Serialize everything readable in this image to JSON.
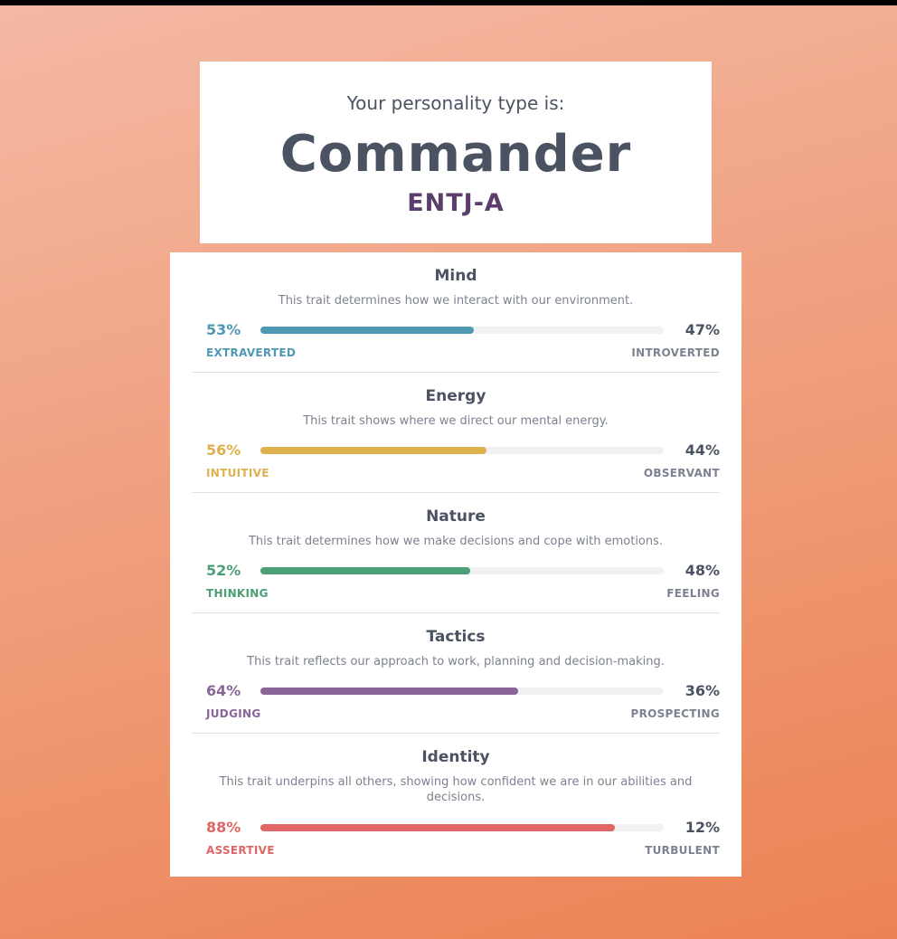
{
  "header": {
    "intro": "Your personality type is:",
    "name": "Commander",
    "code": "ENTJ-A"
  },
  "traits": [
    {
      "title": "Mind",
      "description": "This trait determines how we interact with our environment.",
      "left_pct": "53%",
      "right_pct": "47%",
      "left_label": "EXTRAVERTED",
      "right_label": "INTROVERTED",
      "fill_percent": 53,
      "color": "#4f98b4"
    },
    {
      "title": "Energy",
      "description": "This trait shows where we direct our mental energy.",
      "left_pct": "56%",
      "right_pct": "44%",
      "left_label": "INTUITIVE",
      "right_label": "OBSERVANT",
      "fill_percent": 56,
      "color": "#deb14f"
    },
    {
      "title": "Nature",
      "description": "This trait determines how we make decisions and cope with emotions.",
      "left_pct": "52%",
      "right_pct": "48%",
      "left_label": "THINKING",
      "right_label": "FEELING",
      "fill_percent": 52,
      "color": "#4b9e76"
    },
    {
      "title": "Tactics",
      "description": "This trait reflects our approach to work, planning and decision-making.",
      "left_pct": "64%",
      "right_pct": "36%",
      "left_label": "JUDGING",
      "right_label": "PROSPECTING",
      "fill_percent": 64,
      "color": "#8a6599"
    },
    {
      "title": "Identity",
      "description": "This trait underpins all others, showing how confident we are in our abilities and decisions.",
      "left_pct": "88%",
      "right_pct": "12%",
      "left_label": "ASSERTIVE",
      "right_label": "TURBULENT",
      "fill_percent": 88,
      "color": "#e06666"
    }
  ]
}
